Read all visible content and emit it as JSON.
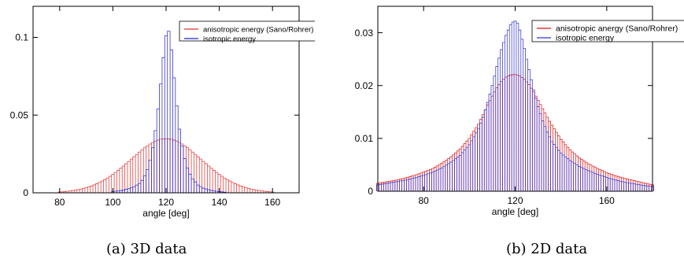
{
  "captions": [
    "(a)  3D data",
    "(b)  2D data"
  ],
  "chart_data": [
    {
      "type": "bar",
      "title": "",
      "xlabel": "angle [deg]",
      "ylabel": "",
      "xlim": [
        70,
        170
      ],
      "ylim": [
        0,
        0.12
      ],
      "xticks": [
        80,
        100,
        120,
        140,
        160
      ],
      "yticks": [
        0,
        0.05,
        0.1
      ],
      "ytick_labels": [
        "0",
        "0.05",
        "0.1"
      ],
      "legend_position": "top-right",
      "grid": false,
      "bin_width": 1,
      "series": [
        {
          "name": "anisotropic energy (Sano/Rohrer)",
          "color": "#e03030",
          "style": "hist",
          "x": [
            80,
            82,
            84,
            86,
            88,
            90,
            92,
            94,
            96,
            98,
            100,
            102,
            104,
            106,
            108,
            110,
            112,
            114,
            116,
            118,
            120,
            122,
            124,
            126,
            128,
            130,
            132,
            134,
            136,
            138,
            140,
            142,
            144,
            146,
            148,
            150,
            152,
            154,
            156,
            158,
            160
          ],
          "values": [
            0.0005,
            0.0008,
            0.0012,
            0.0017,
            0.0024,
            0.0033,
            0.0044,
            0.0058,
            0.0075,
            0.0095,
            0.0118,
            0.0144,
            0.0172,
            0.0202,
            0.0232,
            0.0262,
            0.029,
            0.0314,
            0.0333,
            0.0345,
            0.0348,
            0.0345,
            0.0333,
            0.0314,
            0.029,
            0.0262,
            0.0232,
            0.0202,
            0.0172,
            0.0144,
            0.0118,
            0.0095,
            0.0075,
            0.0058,
            0.0044,
            0.0033,
            0.0024,
            0.0017,
            0.0012,
            0.0008,
            0.0005
          ]
        },
        {
          "name": "isotropic energy",
          "color": "#2020d0",
          "style": "hist",
          "x": [
            100,
            102,
            104,
            106,
            108,
            110,
            111,
            112,
            113,
            114,
            115,
            116,
            117,
            118,
            119,
            120,
            121,
            122,
            123,
            124,
            125,
            126,
            127,
            128,
            129,
            130,
            131,
            132,
            134,
            136,
            138,
            140,
            142
          ],
          "values": [
            0.0008,
            0.0012,
            0.0018,
            0.0027,
            0.004,
            0.006,
            0.008,
            0.011,
            0.015,
            0.021,
            0.029,
            0.04,
            0.054,
            0.07,
            0.087,
            0.101,
            0.104,
            0.092,
            0.074,
            0.056,
            0.041,
            0.03,
            0.022,
            0.016,
            0.012,
            0.009,
            0.007,
            0.005,
            0.003,
            0.002,
            0.0012,
            0.0008,
            0.0004
          ]
        }
      ]
    },
    {
      "type": "bar",
      "title": "",
      "xlabel": "angle [deg]",
      "ylabel": "",
      "xlim": [
        60,
        180
      ],
      "ylim": [
        0,
        0.035
      ],
      "xticks": [
        80,
        120,
        160
      ],
      "yticks": [
        0,
        0.01,
        0.02,
        0.03
      ],
      "ytick_labels": [
        "0",
        "0.01",
        "0.02",
        "0.03"
      ],
      "legend_position": "top-right",
      "grid": false,
      "bin_width": 1,
      "series": [
        {
          "name": "anisotropic anergy (Sano/Rohrer)",
          "color": "#e01010",
          "style": "hist",
          "x": [
            60,
            64,
            68,
            72,
            76,
            80,
            84,
            88,
            92,
            96,
            100,
            104,
            106,
            108,
            110,
            112,
            114,
            116,
            118,
            120,
            122,
            124,
            126,
            128,
            130,
            132,
            134,
            136,
            140,
            144,
            148,
            152,
            156,
            160,
            164,
            168,
            172,
            176,
            180
          ],
          "values": [
            0.0015,
            0.0018,
            0.0021,
            0.0025,
            0.003,
            0.0036,
            0.0043,
            0.0053,
            0.0065,
            0.008,
            0.01,
            0.0127,
            0.0145,
            0.0163,
            0.018,
            0.0196,
            0.0208,
            0.0216,
            0.022,
            0.0221,
            0.0218,
            0.0212,
            0.0202,
            0.0188,
            0.0172,
            0.0156,
            0.014,
            0.0125,
            0.0098,
            0.0078,
            0.0063,
            0.0052,
            0.0043,
            0.0035,
            0.0029,
            0.0024,
            0.002,
            0.0016,
            0.0012
          ]
        },
        {
          "name": "isotropic energy",
          "color": "#3030d0",
          "style": "hist",
          "x": [
            60,
            64,
            68,
            72,
            76,
            80,
            84,
            88,
            92,
            96,
            100,
            104,
            106,
            108,
            110,
            112,
            114,
            116,
            118,
            119,
            120,
            121,
            122,
            124,
            126,
            128,
            130,
            132,
            134,
            136,
            140,
            144,
            148,
            152,
            156,
            160,
            164,
            168,
            172,
            176,
            180
          ],
          "values": [
            0.0012,
            0.0015,
            0.0018,
            0.0021,
            0.0025,
            0.003,
            0.0036,
            0.0044,
            0.0055,
            0.0068,
            0.0088,
            0.0118,
            0.014,
            0.0168,
            0.02,
            0.0236,
            0.0268,
            0.0295,
            0.0315,
            0.032,
            0.0322,
            0.0318,
            0.0305,
            0.027,
            0.023,
            0.0192,
            0.016,
            0.0133,
            0.0112,
            0.0094,
            0.0072,
            0.0058,
            0.0047,
            0.0039,
            0.0032,
            0.0026,
            0.0021,
            0.0017,
            0.0014,
            0.0011,
            0.0009
          ]
        }
      ]
    }
  ]
}
